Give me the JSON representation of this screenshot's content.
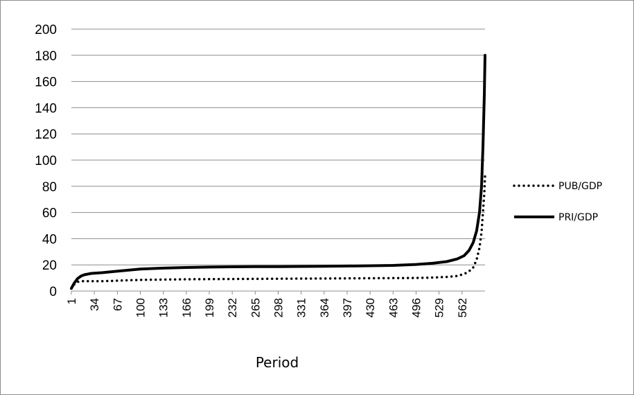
{
  "chart_data": {
    "type": "line",
    "title": "",
    "xlabel": "Period",
    "ylabel": "",
    "ylim": [
      0,
      200
    ],
    "yticks": [
      "0",
      "20",
      "40",
      "60",
      "80",
      "100",
      "120",
      "140",
      "160",
      "180",
      "200"
    ],
    "xlim": [
      1,
      595
    ],
    "xticks": [
      "1",
      "34",
      "67",
      "100",
      "133",
      "166",
      "199",
      "232",
      "265",
      "298",
      "331",
      "364",
      "397",
      "430",
      "463",
      "496",
      "529",
      "562"
    ],
    "grid": "horizontal",
    "legend_position": "right",
    "series": [
      {
        "name": "PUB/GDP",
        "style": "dotted",
        "color": "#000000",
        "x": [
          1,
          5,
          10,
          15,
          20,
          30,
          45,
          60,
          80,
          100,
          133,
          166,
          199,
          232,
          265,
          298,
          331,
          364,
          397,
          430,
          463,
          496,
          520,
          540,
          555,
          565,
          572,
          578,
          583,
          587,
          590,
          592,
          594,
          595
        ],
        "y": [
          2,
          5,
          7,
          7.5,
          7.5,
          7.5,
          7.5,
          7.8,
          8.2,
          8.5,
          8.8,
          9,
          9.1,
          9.2,
          9.3,
          9.4,
          9.5,
          9.6,
          9.7,
          9.8,
          9.9,
          10,
          10.3,
          10.8,
          11.5,
          13,
          15,
          18,
          24,
          33,
          45,
          60,
          75,
          88
        ]
      },
      {
        "name": "PRI/GDP",
        "style": "solid",
        "color": "#000000",
        "x": [
          1,
          5,
          10,
          15,
          20,
          30,
          45,
          60,
          80,
          100,
          133,
          166,
          199,
          232,
          265,
          298,
          331,
          364,
          397,
          430,
          463,
          496,
          520,
          540,
          555,
          565,
          572,
          578,
          583,
          587,
          590,
          592,
          594,
          595
        ],
        "y": [
          2,
          6,
          9.5,
          11.5,
          12.5,
          13.5,
          14,
          14.8,
          15.8,
          16.8,
          17.5,
          18,
          18.3,
          18.5,
          18.6,
          18.7,
          18.8,
          18.9,
          19.1,
          19.3,
          19.6,
          20.3,
          21.2,
          22.5,
          24.5,
          27,
          31,
          37,
          46,
          60,
          80,
          110,
          150,
          180
        ]
      }
    ]
  }
}
